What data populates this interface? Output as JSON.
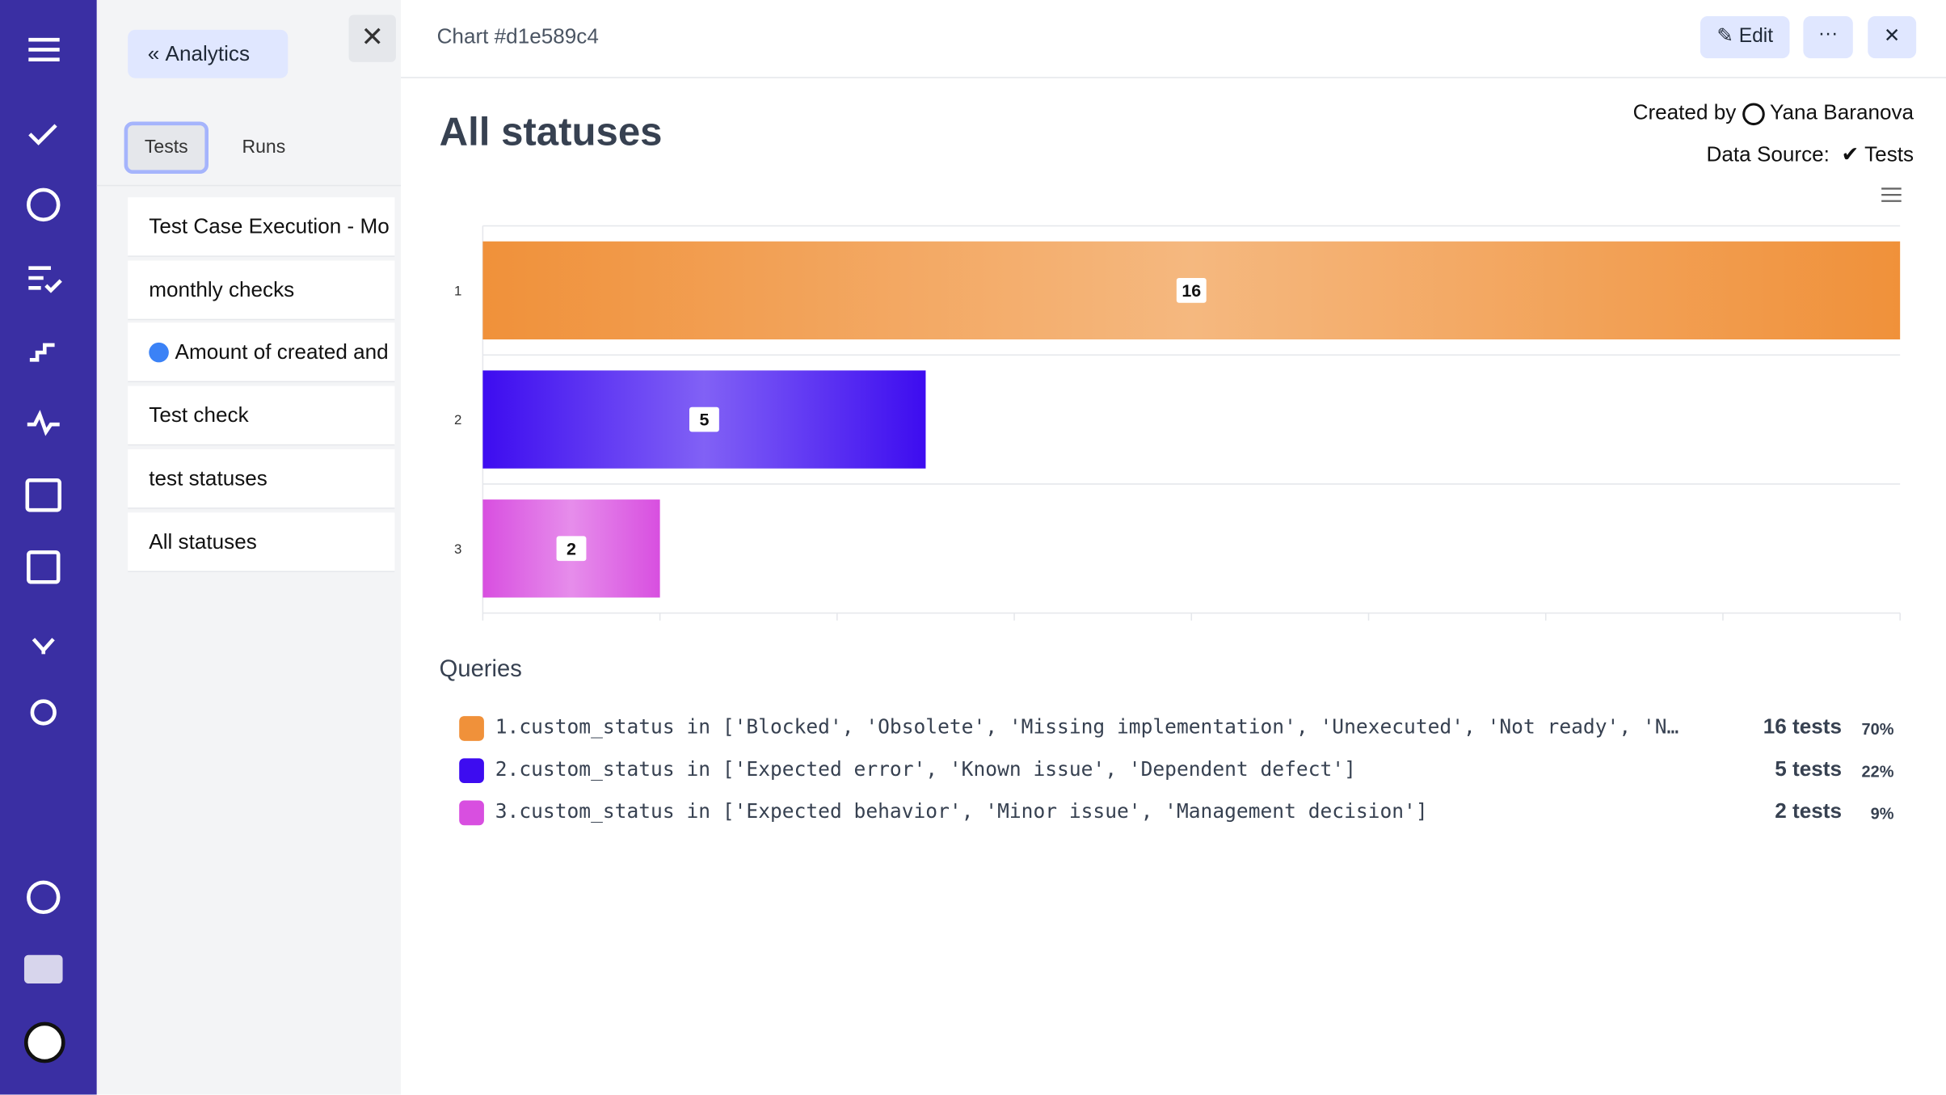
{
  "sidebar": {
    "back_button": "Analytics",
    "tabs": [
      "Tests",
      "Runs"
    ],
    "items": [
      "Test Case Execution - Mo",
      "monthly checks",
      "Amount of created and",
      "Test check",
      "test statuses",
      "All statuses"
    ]
  },
  "header": {
    "title": "Chart #d1e589c4",
    "edit_button": "Edit"
  },
  "meta": {
    "created_by_label": "Created by",
    "author": "Yana Baranova",
    "source_label": "Data Source:",
    "source": "Tests"
  },
  "chart_data": {
    "type": "bar",
    "orientation": "horizontal",
    "title": "All statuses",
    "categories": [
      "1",
      "2",
      "3"
    ],
    "values": [
      16,
      5,
      2
    ],
    "colors": [
      "#f0913a",
      "#3d0cf0",
      "#d84fe0"
    ],
    "xlim": [
      0,
      16
    ],
    "xticks": [
      0,
      2,
      4,
      6,
      8,
      10,
      12,
      14,
      16
    ]
  },
  "queries": {
    "title": "Queries",
    "rows": [
      {
        "text": "1.custom_status in ['Blocked', 'Obsolete', 'Missing implementation', 'Unexecuted', 'Not ready', 'N…",
        "count": "16 tests",
        "share": "70%"
      },
      {
        "text": "2.custom_status in ['Expected error', 'Known issue', 'Dependent defect']",
        "count": "5 tests",
        "share": "22%"
      },
      {
        "text": "3.custom_status in ['Expected behavior', 'Minor issue', 'Management decision']",
        "count": "2 tests",
        "share": "9%"
      }
    ]
  }
}
